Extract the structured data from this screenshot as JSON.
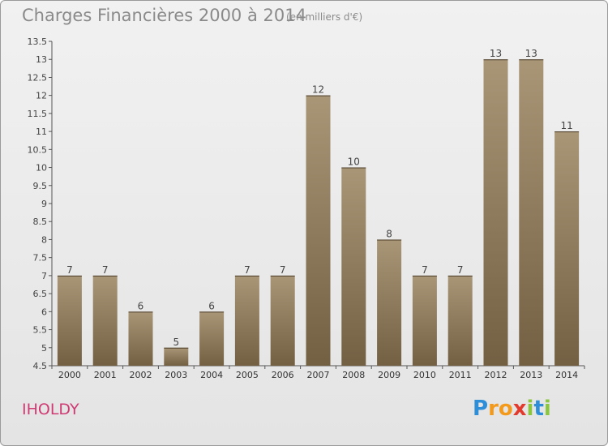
{
  "chart_data": {
    "type": "bar",
    "title": "Charges Financières 2000 à 2014",
    "subtitle": "(en milliers d'€)",
    "categories": [
      "2000",
      "2001",
      "2002",
      "2003",
      "2004",
      "2005",
      "2006",
      "2007",
      "2008",
      "2009",
      "2010",
      "2011",
      "2012",
      "2013",
      "2014"
    ],
    "values": [
      7,
      7,
      6,
      5,
      6,
      7,
      7,
      12,
      10,
      8,
      7,
      7,
      13,
      13,
      11
    ],
    "ylim": [
      4.5,
      13.5
    ],
    "yticks": [
      "4.5",
      "5",
      "5.5",
      "6",
      "6.5",
      "7",
      "7.5",
      "8",
      "8.5",
      "9",
      "9.5",
      "10",
      "10.5",
      "11",
      "11.5",
      "12",
      "12.5",
      "13",
      "13.5"
    ],
    "grid": false,
    "bar_color_top": "#a99677",
    "bar_color_bottom": "#735f42"
  },
  "place_label": "IHOLDY",
  "brand_letters": [
    "P",
    "r",
    "o",
    "x",
    "i",
    "t",
    "i"
  ],
  "brand_colors": [
    "#2e8fd8",
    "#f39a1d",
    "#f39a1d",
    "#e23b2e",
    "#8cc63f",
    "#2e8fd8",
    "#8cc63f"
  ]
}
